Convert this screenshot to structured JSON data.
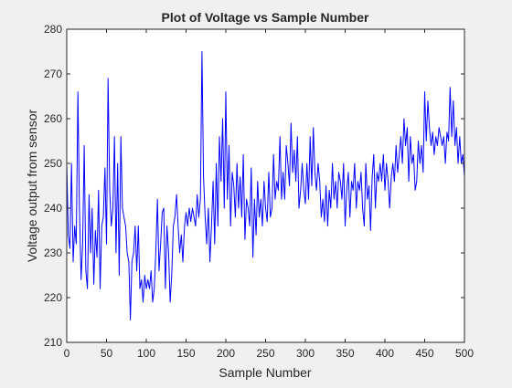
{
  "chart_data": {
    "type": "line",
    "title": "Plot of Voltage vs Sample Number",
    "xlabel": "Sample Number",
    "ylabel": "Voltage output from sensor",
    "xlim": [
      0,
      500
    ],
    "ylim": [
      210,
      280
    ],
    "xticks": [
      0,
      50,
      100,
      150,
      200,
      250,
      300,
      350,
      400,
      450,
      500
    ],
    "yticks": [
      210,
      220,
      230,
      240,
      250,
      260,
      270,
      280
    ],
    "grid": false,
    "series": [
      {
        "color": "#0000ff",
        "points": [
          [
            0,
            250
          ],
          [
            2,
            234
          ],
          [
            4,
            231
          ],
          [
            6,
            250
          ],
          [
            8,
            228
          ],
          [
            10,
            236
          ],
          [
            12,
            232
          ],
          [
            14,
            266
          ],
          [
            16,
            240
          ],
          [
            18,
            224
          ],
          [
            20,
            232
          ],
          [
            22,
            254
          ],
          [
            24,
            226
          ],
          [
            26,
            222
          ],
          [
            28,
            243
          ],
          [
            30,
            230
          ],
          [
            32,
            240
          ],
          [
            34,
            223
          ],
          [
            36,
            235
          ],
          [
            38,
            229
          ],
          [
            40,
            244
          ],
          [
            42,
            222
          ],
          [
            44,
            236
          ],
          [
            46,
            238
          ],
          [
            48,
            249
          ],
          [
            50,
            232
          ],
          [
            52,
            269
          ],
          [
            54,
            244
          ],
          [
            56,
            236
          ],
          [
            58,
            240
          ],
          [
            60,
            256
          ],
          [
            62,
            230
          ],
          [
            64,
            250
          ],
          [
            66,
            225
          ],
          [
            68,
            256
          ],
          [
            70,
            240
          ],
          [
            72,
            238
          ],
          [
            74,
            236
          ],
          [
            76,
            230
          ],
          [
            78,
            228
          ],
          [
            80,
            215
          ],
          [
            82,
            228
          ],
          [
            84,
            230
          ],
          [
            86,
            236
          ],
          [
            88,
            226
          ],
          [
            90,
            236
          ],
          [
            92,
            222
          ],
          [
            94,
            224
          ],
          [
            96,
            219
          ],
          [
            98,
            225
          ],
          [
            100,
            222
          ],
          [
            102,
            224
          ],
          [
            104,
            222
          ],
          [
            106,
            226
          ],
          [
            108,
            219
          ],
          [
            110,
            222
          ],
          [
            112,
            230
          ],
          [
            114,
            242
          ],
          [
            116,
            226
          ],
          [
            118,
            232
          ],
          [
            120,
            239
          ],
          [
            122,
            240
          ],
          [
            124,
            222
          ],
          [
            126,
            236
          ],
          [
            128,
            230
          ],
          [
            130,
            219
          ],
          [
            132,
            225
          ],
          [
            134,
            236
          ],
          [
            136,
            238
          ],
          [
            138,
            243
          ],
          [
            140,
            236
          ],
          [
            142,
            230
          ],
          [
            144,
            234
          ],
          [
            146,
            228
          ],
          [
            148,
            236
          ],
          [
            150,
            239
          ],
          [
            152,
            236
          ],
          [
            154,
            240
          ],
          [
            156,
            237
          ],
          [
            158,
            240
          ],
          [
            160,
            238
          ],
          [
            162,
            236
          ],
          [
            164,
            243
          ],
          [
            166,
            238
          ],
          [
            168,
            242
          ],
          [
            170,
            275
          ],
          [
            172,
            247
          ],
          [
            174,
            238
          ],
          [
            176,
            232
          ],
          [
            178,
            240
          ],
          [
            180,
            228
          ],
          [
            182,
            236
          ],
          [
            184,
            246
          ],
          [
            186,
            232
          ],
          [
            188,
            250
          ],
          [
            190,
            236
          ],
          [
            192,
            256
          ],
          [
            194,
            246
          ],
          [
            196,
            260
          ],
          [
            198,
            240
          ],
          [
            200,
            266
          ],
          [
            202,
            242
          ],
          [
            204,
            254
          ],
          [
            206,
            236
          ],
          [
            208,
            248
          ],
          [
            210,
            245
          ],
          [
            212,
            238
          ],
          [
            214,
            250
          ],
          [
            216,
            240
          ],
          [
            218,
            247
          ],
          [
            220,
            238
          ],
          [
            222,
            252
          ],
          [
            224,
            233
          ],
          [
            226,
            242
          ],
          [
            228,
            240
          ],
          [
            230,
            236
          ],
          [
            232,
            249
          ],
          [
            234,
            229
          ],
          [
            236,
            242
          ],
          [
            238,
            234
          ],
          [
            240,
            246
          ],
          [
            242,
            238
          ],
          [
            244,
            242
          ],
          [
            246,
            236
          ],
          [
            248,
            246
          ],
          [
            250,
            240
          ],
          [
            252,
            237
          ],
          [
            254,
            248
          ],
          [
            256,
            238
          ],
          [
            258,
            240
          ],
          [
            260,
            252
          ],
          [
            262,
            242
          ],
          [
            264,
            246
          ],
          [
            266,
            244
          ],
          [
            268,
            256
          ],
          [
            270,
            242
          ],
          [
            272,
            248
          ],
          [
            274,
            242
          ],
          [
            276,
            254
          ],
          [
            278,
            250
          ],
          [
            280,
            245
          ],
          [
            282,
            259
          ],
          [
            284,
            248
          ],
          [
            286,
            253
          ],
          [
            288,
            246
          ],
          [
            290,
            256
          ],
          [
            292,
            240
          ],
          [
            294,
            244
          ],
          [
            296,
            250
          ],
          [
            298,
            244
          ],
          [
            300,
            241
          ],
          [
            302,
            250
          ],
          [
            304,
            242
          ],
          [
            306,
            256
          ],
          [
            308,
            245
          ],
          [
            310,
            258
          ],
          [
            312,
            248
          ],
          [
            314,
            244
          ],
          [
            316,
            250
          ],
          [
            318,
            246
          ],
          [
            320,
            238
          ],
          [
            322,
            242
          ],
          [
            324,
            237
          ],
          [
            326,
            245
          ],
          [
            328,
            236
          ],
          [
            330,
            244
          ],
          [
            332,
            240
          ],
          [
            334,
            250
          ],
          [
            336,
            242
          ],
          [
            338,
            246
          ],
          [
            340,
            240
          ],
          [
            342,
            248
          ],
          [
            344,
            246
          ],
          [
            346,
            242
          ],
          [
            348,
            250
          ],
          [
            350,
            236
          ],
          [
            352,
            244
          ],
          [
            354,
            248
          ],
          [
            356,
            238
          ],
          [
            358,
            246
          ],
          [
            360,
            244
          ],
          [
            362,
            250
          ],
          [
            364,
            240
          ],
          [
            366,
            246
          ],
          [
            368,
            244
          ],
          [
            370,
            248
          ],
          [
            372,
            240
          ],
          [
            374,
            236
          ],
          [
            376,
            250
          ],
          [
            378,
            242
          ],
          [
            380,
            245
          ],
          [
            382,
            235
          ],
          [
            384,
            247
          ],
          [
            386,
            252
          ],
          [
            388,
            240
          ],
          [
            390,
            248
          ],
          [
            392,
            246
          ],
          [
            394,
            250
          ],
          [
            396,
            246
          ],
          [
            398,
            252
          ],
          [
            400,
            244
          ],
          [
            402,
            250
          ],
          [
            404,
            246
          ],
          [
            406,
            240
          ],
          [
            408,
            247
          ],
          [
            410,
            250
          ],
          [
            412,
            246
          ],
          [
            414,
            254
          ],
          [
            416,
            248
          ],
          [
            418,
            252
          ],
          [
            420,
            256
          ],
          [
            422,
            250
          ],
          [
            424,
            260
          ],
          [
            426,
            254
          ],
          [
            428,
            258
          ],
          [
            430,
            246
          ],
          [
            432,
            256
          ],
          [
            434,
            250
          ],
          [
            436,
            252
          ],
          [
            438,
            244
          ],
          [
            440,
            246
          ],
          [
            442,
            255
          ],
          [
            444,
            250
          ],
          [
            446,
            254
          ],
          [
            448,
            248
          ],
          [
            450,
            266
          ],
          [
            452,
            255
          ],
          [
            454,
            264
          ],
          [
            456,
            258
          ],
          [
            458,
            254
          ],
          [
            460,
            257
          ],
          [
            462,
            252
          ],
          [
            464,
            256
          ],
          [
            466,
            254
          ],
          [
            468,
            258
          ],
          [
            470,
            256
          ],
          [
            472,
            254
          ],
          [
            474,
            256
          ],
          [
            476,
            250
          ],
          [
            478,
            257
          ],
          [
            480,
            255
          ],
          [
            482,
            267
          ],
          [
            484,
            256
          ],
          [
            486,
            264
          ],
          [
            488,
            254
          ],
          [
            490,
            258
          ],
          [
            492,
            250
          ],
          [
            494,
            256
          ],
          [
            496,
            250
          ],
          [
            498,
            252
          ],
          [
            500,
            247
          ]
        ]
      }
    ]
  }
}
